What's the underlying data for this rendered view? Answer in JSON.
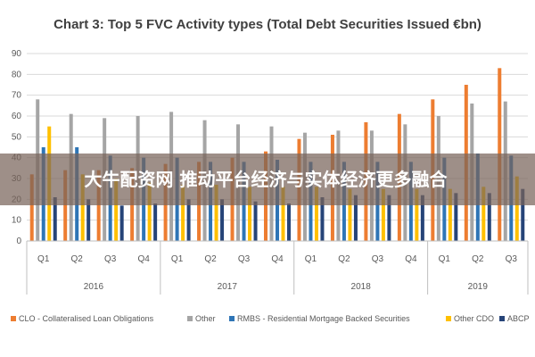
{
  "chart_data": {
    "type": "bar",
    "title": "Chart 3: Top 5 FVC Activity types (Total Debt Securities Issued €bn)",
    "xlabel": "",
    "ylabel": "",
    "ylim": [
      0,
      90
    ],
    "yticks": [
      0,
      10,
      20,
      30,
      40,
      50,
      60,
      70,
      80,
      90
    ],
    "grid": true,
    "legend_position": "bottom",
    "categories": [
      "Q1",
      "Q2",
      "Q3",
      "Q4",
      "Q1",
      "Q2",
      "Q3",
      "Q4",
      "Q1",
      "Q2",
      "Q3",
      "Q4",
      "Q1",
      "Q2",
      "Q3"
    ],
    "years": [
      {
        "label": "2016",
        "quarters": 4
      },
      {
        "label": "2017",
        "quarters": 4
      },
      {
        "label": "2018",
        "quarters": 4
      },
      {
        "label": "2019",
        "quarters": 3
      }
    ],
    "series": [
      {
        "name": "CLO - Collateralised Loan Obligations",
        "color": "#ED7D31",
        "values": [
          32,
          34,
          34,
          35,
          37,
          38,
          40,
          43,
          49,
          51,
          57,
          61,
          68,
          75,
          83
        ]
      },
      {
        "name": "Other",
        "color": "#A5A5A5",
        "values": [
          68,
          61,
          59,
          60,
          62,
          58,
          56,
          55,
          52,
          53,
          53,
          56,
          60,
          66,
          67
        ]
      },
      {
        "name": "RMBS - Residential Mortgage Backed Securities",
        "color": "#2E75B6",
        "values": [
          45,
          45,
          41,
          40,
          40,
          38,
          38,
          39,
          38,
          38,
          38,
          38,
          40,
          42,
          41
        ]
      },
      {
        "name": "Other CDO",
        "color": "#FFC000",
        "values": [
          55,
          32,
          30,
          28,
          27,
          27,
          26,
          26,
          26,
          25,
          25,
          25,
          25,
          26,
          31
        ]
      },
      {
        "name": "ABCP",
        "color": "#264478",
        "values": [
          21,
          20,
          17,
          18,
          20,
          20,
          19,
          18,
          21,
          22,
          22,
          22,
          23,
          23,
          25
        ]
      }
    ]
  },
  "watermark": {
    "text": "大牛配资网 推动平台经济与实体经济更多融合"
  }
}
